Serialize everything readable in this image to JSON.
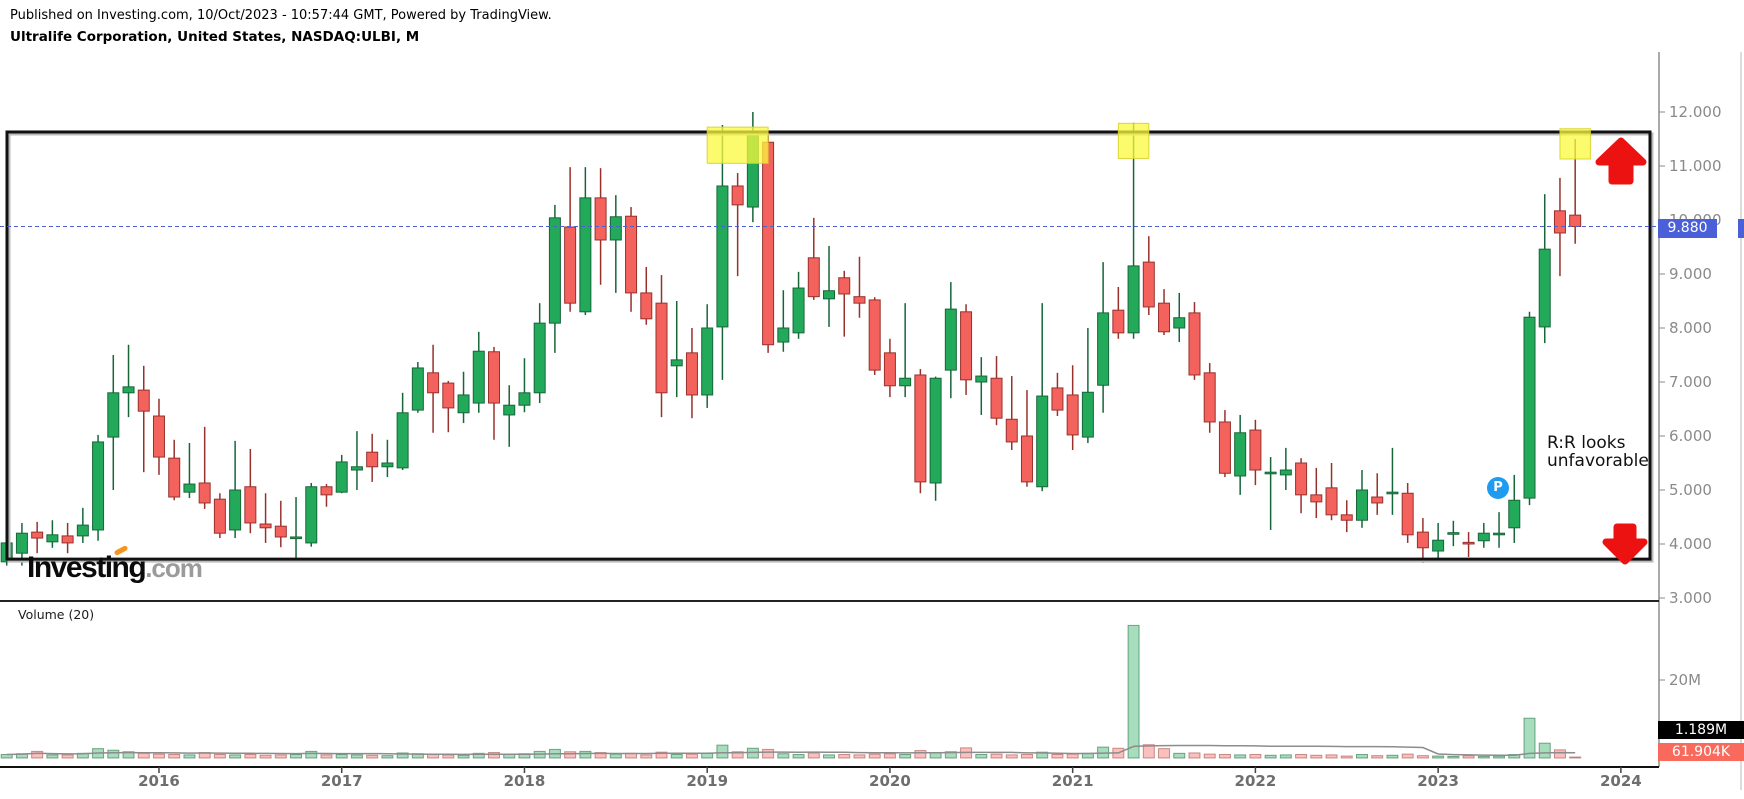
{
  "header": {
    "published_line": "Published on Investing.com, 10/Oct/2023 - 10:57:44 GMT, Powered by TradingView.",
    "instrument_line": "Ultralife Corporation, United States, NASDAQ:ULBI, M"
  },
  "logo": {
    "text_main": "Investing",
    "text_suffix": ".com"
  },
  "price_axis": {
    "labels": [
      "12.000",
      "11.000",
      "10.000",
      "9.000",
      "8.000",
      "7.000",
      "6.000",
      "5.000",
      "4.000",
      "3.000"
    ],
    "last_price_label": "9.880"
  },
  "volume_pane": {
    "label": "Volume (20)",
    "axis_label": "20M",
    "axis_value_millions": 20,
    "ma_badge": "1.189M",
    "last_volume_badge": "61.904K"
  },
  "x_axis": {
    "years": [
      "2016",
      "2017",
      "2018",
      "2019",
      "2020",
      "2021",
      "2022",
      "2023",
      "2024"
    ]
  },
  "annotations": {
    "rr_line1": "R:R looks",
    "rr_line2": "unfavorable",
    "p_marker_label": "P",
    "up_arrow": "red-up-arrow near resistance touch Oct 2023",
    "down_arrow": "red-down-arrow near box bottom"
  },
  "colors": {
    "up_fill": "#23a95a",
    "up_border": "#17663a",
    "down_fill": "#f4625d",
    "down_border": "#98312c",
    "vol_up": "rgba(35,169,90,0.4)",
    "vol_up_border": "rgba(23,102,58,0.55)",
    "vol_down": "rgba(244,98,93,0.4)",
    "vol_down_border": "rgba(152,49,44,0.5)",
    "badge_blue": "#4a5fd8",
    "badge_black": "#000000",
    "badge_red": "#fa6a5c",
    "marker_blue": "#1f9cf0",
    "arrow_red": "#ec1212",
    "yellow_zone": "rgba(249,249,60,0.75)",
    "yellow_zone_border": "rgba(216,210,40,0.9)",
    "resistance_box": "#111111",
    "dashed_price_line": "#4b61d1",
    "volume_ma_line": "#8c8c8c",
    "logo_orange": "#f7941d"
  },
  "chart_data": {
    "type": "candlestick_with_volume",
    "title": "Ultralife Corporation NASDAQ:ULBI monthly candlestick chart with volume",
    "symbol": "NASDAQ:ULBI",
    "interval": "M",
    "price_axis_ticks": [
      12.0,
      11.0,
      10.0,
      9.0,
      8.0,
      7.0,
      6.0,
      5.0,
      4.0,
      3.0
    ],
    "price_axis_range": [
      3.0,
      12.3
    ],
    "volume_axis_tick_millions": 20,
    "last_price": 9.88,
    "resistance_box": {
      "price_top": 11.63,
      "price_bottom": 3.72
    },
    "volume_ma_period": 20,
    "columns": [
      "month",
      "open",
      "high",
      "low",
      "close",
      "volume_millions"
    ],
    "candles": [
      [
        "2015-03",
        3.67,
        4.06,
        3.6,
        4.02,
        0.9
      ],
      [
        "2015-04",
        3.83,
        4.39,
        3.6,
        4.2,
        1.1
      ],
      [
        "2015-05",
        4.22,
        4.41,
        3.83,
        4.11,
        1.7
      ],
      [
        "2015-06",
        4.04,
        4.44,
        3.93,
        4.17,
        0.8
      ],
      [
        "2015-07",
        4.15,
        4.39,
        3.83,
        4.02,
        0.8
      ],
      [
        "2015-08",
        4.15,
        4.67,
        4.02,
        4.35,
        1.2
      ],
      [
        "2015-09",
        4.26,
        6.02,
        4.06,
        5.89,
        2.4
      ],
      [
        "2015-10",
        5.98,
        7.5,
        5.0,
        6.8,
        2.0
      ],
      [
        "2015-11",
        6.8,
        7.69,
        6.35,
        6.91,
        1.6
      ],
      [
        "2015-12",
        6.85,
        7.3,
        5.33,
        6.46,
        1.2
      ],
      [
        "2016-01",
        6.37,
        6.69,
        5.28,
        5.61,
        1.0
      ],
      [
        "2016-02",
        5.59,
        5.93,
        4.81,
        4.87,
        0.9
      ],
      [
        "2016-03",
        4.96,
        5.87,
        4.85,
        5.11,
        0.8
      ],
      [
        "2016-04",
        5.13,
        6.17,
        4.65,
        4.76,
        1.4
      ],
      [
        "2016-05",
        4.83,
        4.94,
        4.11,
        4.2,
        0.9
      ],
      [
        "2016-06",
        4.26,
        5.91,
        4.11,
        5.0,
        0.8
      ],
      [
        "2016-07",
        5.06,
        5.76,
        4.2,
        4.39,
        0.9
      ],
      [
        "2016-08",
        4.37,
        4.94,
        4.02,
        4.3,
        0.7
      ],
      [
        "2016-09",
        4.33,
        4.8,
        3.94,
        4.13,
        0.8
      ],
      [
        "2016-10",
        4.1,
        4.87,
        3.74,
        4.13,
        0.9
      ],
      [
        "2016-11",
        4.02,
        5.13,
        3.95,
        5.06,
        1.7
      ],
      [
        "2016-12",
        5.06,
        5.11,
        4.69,
        4.91,
        0.8
      ],
      [
        "2017-01",
        4.96,
        5.65,
        4.94,
        5.52,
        0.9
      ],
      [
        "2017-02",
        5.37,
        6.09,
        5.0,
        5.43,
        0.8
      ],
      [
        "2017-03",
        5.7,
        6.04,
        5.15,
        5.43,
        0.7
      ],
      [
        "2017-04",
        5.43,
        5.93,
        5.24,
        5.5,
        0.6
      ],
      [
        "2017-05",
        5.41,
        6.8,
        5.37,
        6.43,
        1.3
      ],
      [
        "2017-06",
        6.48,
        7.37,
        6.43,
        7.26,
        1.1
      ],
      [
        "2017-07",
        7.17,
        7.69,
        6.06,
        6.8,
        1.0
      ],
      [
        "2017-08",
        6.98,
        7.02,
        6.07,
        6.52,
        0.8
      ],
      [
        "2017-09",
        6.43,
        7.19,
        6.24,
        6.76,
        0.7
      ],
      [
        "2017-10",
        6.61,
        7.93,
        6.43,
        7.57,
        1.2
      ],
      [
        "2017-11",
        7.56,
        7.65,
        5.93,
        6.61,
        1.4
      ],
      [
        "2017-12",
        6.39,
        6.94,
        5.8,
        6.57,
        0.9
      ],
      [
        "2018-01",
        6.57,
        7.44,
        6.44,
        6.8,
        1.1
      ],
      [
        "2018-02",
        6.8,
        8.46,
        6.61,
        8.09,
        1.7
      ],
      [
        "2018-03",
        8.09,
        10.28,
        7.54,
        10.04,
        2.2
      ],
      [
        "2018-04",
        9.87,
        10.98,
        8.3,
        8.46,
        1.6
      ],
      [
        "2018-05",
        8.3,
        10.98,
        8.24,
        10.41,
        1.7
      ],
      [
        "2018-06",
        10.41,
        10.96,
        8.8,
        9.63,
        1.4
      ],
      [
        "2018-07",
        9.63,
        10.46,
        8.65,
        10.06,
        1.0
      ],
      [
        "2018-08",
        10.07,
        10.24,
        8.3,
        8.65,
        1.2
      ],
      [
        "2018-09",
        8.65,
        9.13,
        8.06,
        8.17,
        0.8
      ],
      [
        "2018-10",
        8.46,
        8.98,
        6.35,
        6.8,
        1.5
      ],
      [
        "2018-11",
        7.3,
        8.5,
        6.72,
        7.41,
        0.9
      ],
      [
        "2018-12",
        7.54,
        8.0,
        6.33,
        6.76,
        1.0
      ],
      [
        "2019-01",
        6.76,
        8.44,
        6.52,
        8.0,
        1.2
      ],
      [
        "2019-02",
        8.02,
        11.76,
        7.04,
        10.63,
        3.3
      ],
      [
        "2019-03",
        10.63,
        10.87,
        8.96,
        10.28,
        1.6
      ],
      [
        "2019-04",
        10.24,
        12.0,
        9.96,
        11.57,
        2.5
      ],
      [
        "2019-05",
        11.44,
        11.61,
        7.54,
        7.69,
        2.2
      ],
      [
        "2019-06",
        7.74,
        8.7,
        7.56,
        8.0,
        1.1
      ],
      [
        "2019-07",
        7.91,
        9.04,
        7.8,
        8.74,
        0.9
      ],
      [
        "2019-08",
        9.3,
        10.04,
        8.52,
        8.58,
        1.3
      ],
      [
        "2019-09",
        8.54,
        9.52,
        8.02,
        8.69,
        0.8
      ],
      [
        "2019-10",
        8.93,
        9.06,
        7.84,
        8.63,
        0.9
      ],
      [
        "2019-11",
        8.58,
        9.32,
        8.19,
        8.46,
        0.8
      ],
      [
        "2019-12",
        8.52,
        8.57,
        7.13,
        7.22,
        1.0
      ],
      [
        "2020-01",
        7.54,
        7.8,
        6.72,
        6.93,
        1.1
      ],
      [
        "2020-02",
        6.93,
        8.46,
        6.72,
        7.07,
        0.9
      ],
      [
        "2020-03",
        7.13,
        7.24,
        4.94,
        5.15,
        1.9
      ],
      [
        "2020-04",
        5.13,
        7.1,
        4.8,
        7.07,
        1.3
      ],
      [
        "2020-05",
        7.22,
        8.85,
        6.7,
        8.35,
        1.6
      ],
      [
        "2020-06",
        8.3,
        8.44,
        6.76,
        7.04,
        2.6
      ],
      [
        "2020-07",
        7.0,
        7.46,
        6.39,
        7.11,
        0.9
      ],
      [
        "2020-08",
        7.07,
        7.48,
        6.2,
        6.33,
        1.0
      ],
      [
        "2020-09",
        6.31,
        7.11,
        5.74,
        5.89,
        0.8
      ],
      [
        "2020-10",
        6.0,
        6.85,
        5.06,
        5.15,
        0.9
      ],
      [
        "2020-11",
        5.06,
        8.46,
        4.98,
        6.74,
        1.5
      ],
      [
        "2020-12",
        6.89,
        7.17,
        6.37,
        6.48,
        0.9
      ],
      [
        "2021-01",
        6.76,
        7.31,
        5.74,
        6.02,
        1.0
      ],
      [
        "2021-02",
        5.98,
        8.0,
        5.87,
        6.81,
        1.2
      ],
      [
        "2021-03",
        6.94,
        9.22,
        6.43,
        8.28,
        2.8
      ],
      [
        "2021-04",
        8.33,
        8.76,
        7.8,
        7.91,
        2.5
      ],
      [
        "2021-05",
        7.91,
        11.8,
        7.8,
        9.15,
        34.0
      ],
      [
        "2021-06",
        9.22,
        9.7,
        8.24,
        8.39,
        3.4
      ],
      [
        "2021-07",
        8.46,
        8.72,
        7.87,
        7.93,
        2.4
      ],
      [
        "2021-08",
        8.0,
        8.65,
        7.74,
        8.19,
        1.2
      ],
      [
        "2021-09",
        8.28,
        8.48,
        7.04,
        7.13,
        1.3
      ],
      [
        "2021-10",
        7.17,
        7.35,
        6.06,
        6.26,
        1.0
      ],
      [
        "2021-11",
        6.26,
        6.48,
        5.24,
        5.31,
        0.9
      ],
      [
        "2021-12",
        5.26,
        6.39,
        4.91,
        6.06,
        0.8
      ],
      [
        "2022-01",
        6.11,
        6.3,
        5.09,
        5.37,
        0.9
      ],
      [
        "2022-02",
        5.3,
        5.61,
        4.26,
        5.33,
        0.7
      ],
      [
        "2022-03",
        5.28,
        5.78,
        5.0,
        5.37,
        0.8
      ],
      [
        "2022-04",
        5.5,
        5.59,
        4.57,
        4.91,
        0.9
      ],
      [
        "2022-05",
        4.91,
        5.41,
        4.48,
        4.78,
        0.7
      ],
      [
        "2022-06",
        5.04,
        5.5,
        4.44,
        4.54,
        0.8
      ],
      [
        "2022-07",
        4.54,
        4.81,
        4.22,
        4.44,
        0.5
      ],
      [
        "2022-08",
        4.44,
        5.37,
        4.3,
        5.0,
        0.9
      ],
      [
        "2022-09",
        4.87,
        5.31,
        4.54,
        4.76,
        0.6
      ],
      [
        "2022-10",
        4.93,
        5.78,
        4.54,
        4.96,
        0.7
      ],
      [
        "2022-11",
        4.94,
        5.13,
        4.02,
        4.17,
        1.0
      ],
      [
        "2022-12",
        4.22,
        4.48,
        3.65,
        3.93,
        0.6
      ],
      [
        "2023-01",
        3.87,
        4.39,
        3.7,
        4.07,
        0.5
      ],
      [
        "2023-02",
        4.19,
        4.43,
        3.96,
        4.21,
        0.4
      ],
      [
        "2023-03",
        4.03,
        4.22,
        3.76,
        4.01,
        0.6
      ],
      [
        "2023-04",
        4.06,
        4.39,
        3.93,
        4.2,
        0.4
      ],
      [
        "2023-05",
        4.18,
        4.59,
        3.93,
        4.2,
        0.5
      ],
      [
        "2023-06",
        4.3,
        5.28,
        4.02,
        4.81,
        0.9
      ],
      [
        "2023-07",
        4.85,
        8.3,
        4.72,
        8.2,
        10.2
      ],
      [
        "2023-08",
        8.02,
        10.48,
        7.72,
        9.46,
        3.8
      ],
      [
        "2023-09",
        10.17,
        10.78,
        8.96,
        9.76,
        2.1
      ],
      [
        "2023-10",
        10.09,
        11.5,
        9.56,
        9.88,
        0.062
      ]
    ],
    "yellow_zones": [
      {
        "from": "2019-01",
        "to": "2019-05",
        "price_top": 11.72,
        "price_bottom": 11.05
      },
      {
        "from": "2021-04",
        "to": "2021-06",
        "price_top": 11.79,
        "price_bottom": 11.14
      },
      {
        "from": "2023-09",
        "to": "2023-11",
        "price_top": 11.69,
        "price_bottom": 11.13
      }
    ]
  }
}
